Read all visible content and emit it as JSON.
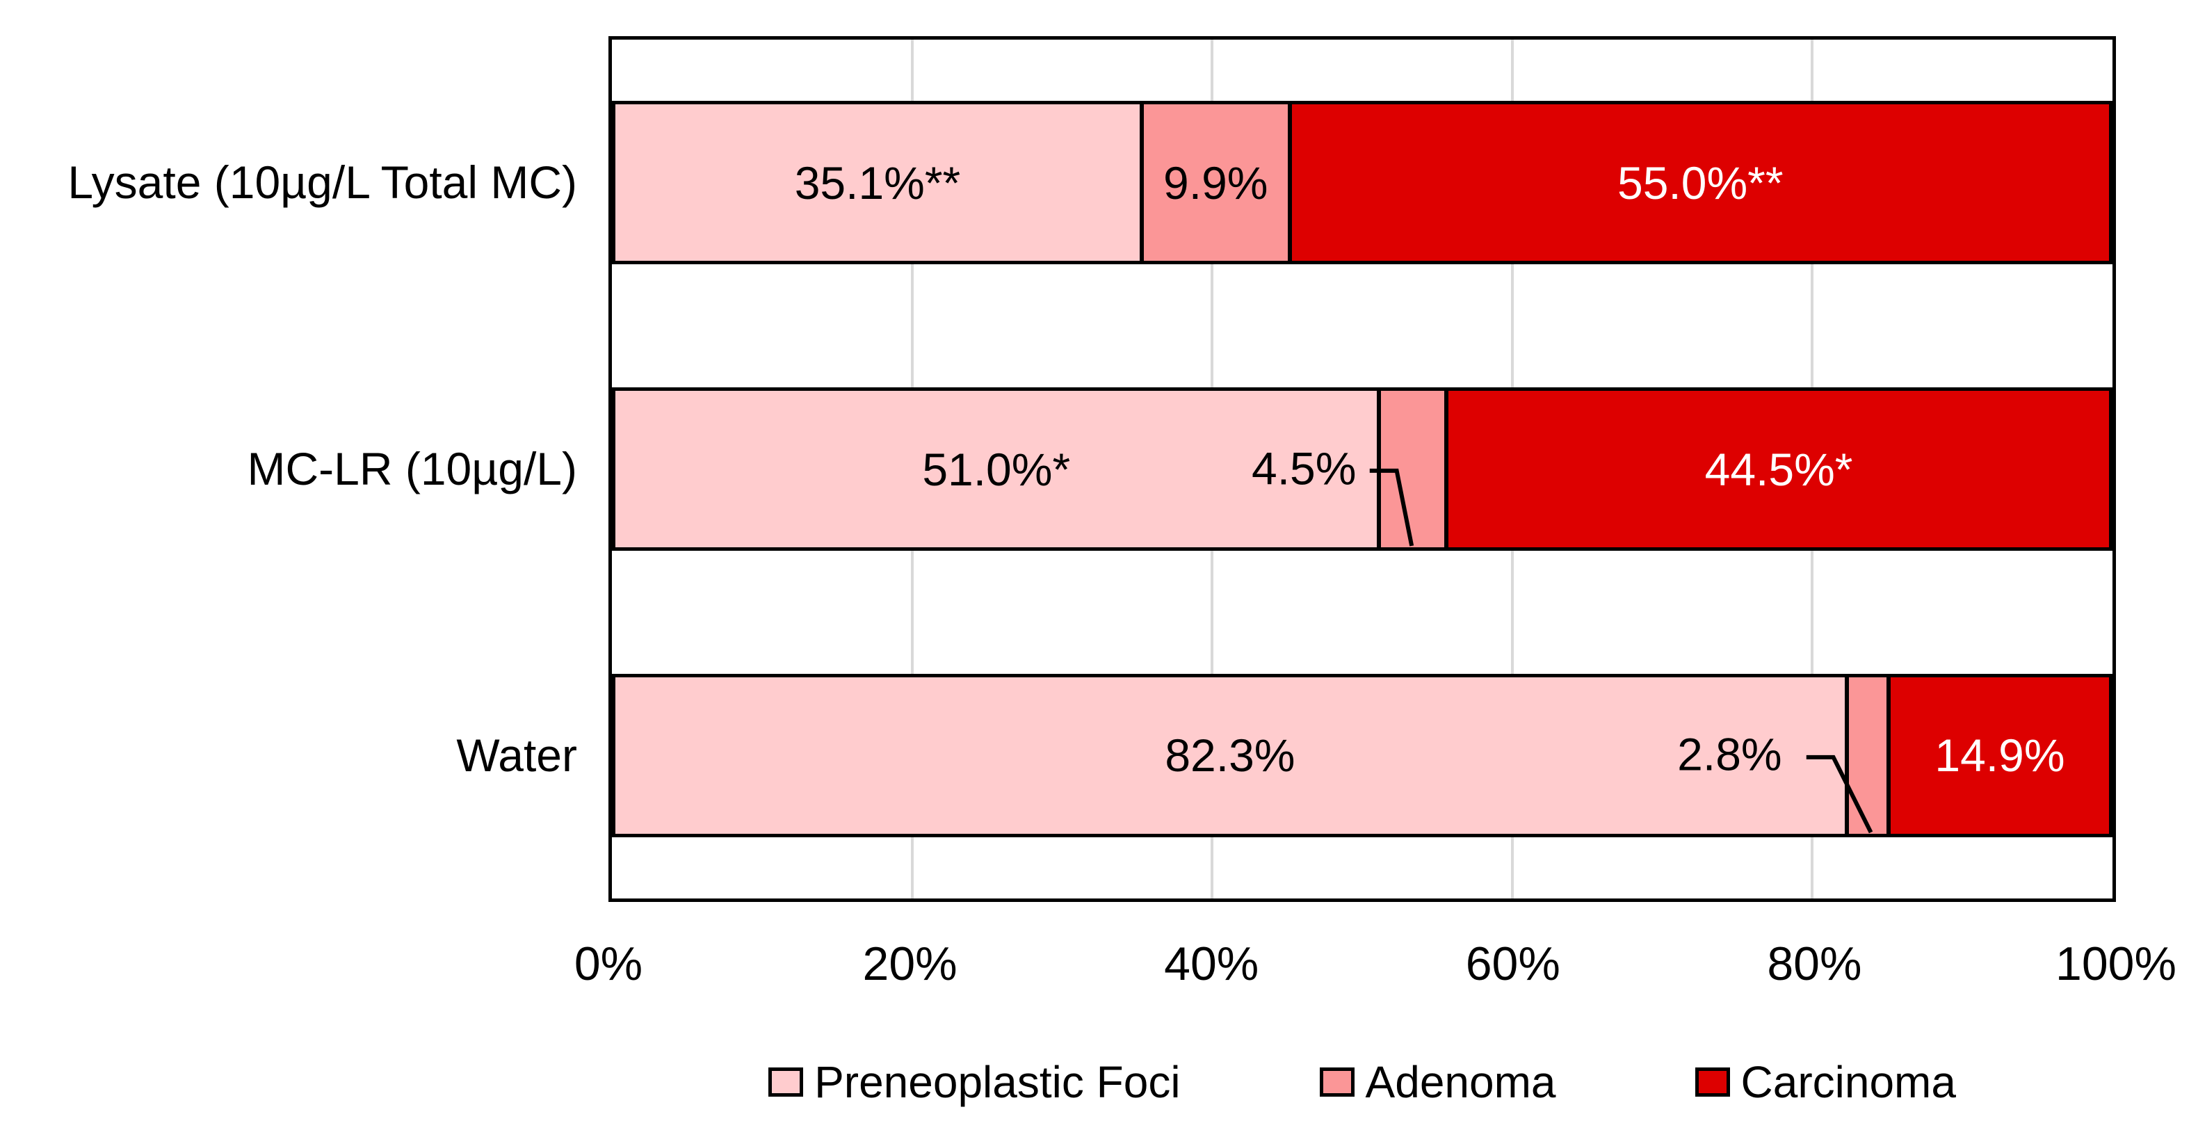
{
  "chart_data": {
    "type": "bar",
    "subtype": "horizontal-stacked-100pct",
    "title": "",
    "xlabel": "",
    "ylabel": "",
    "categories": [
      "Lysate (10µg/L Total MC)",
      "MC-LR (10µg/L)",
      "Water"
    ],
    "series": [
      {
        "name": "Preneoplastic Foci",
        "values": [
          35.1,
          51.0,
          82.3
        ],
        "labels": [
          "35.1%**",
          "51.0%*",
          "82.3%"
        ],
        "color": "#ffccce"
      },
      {
        "name": "Adenoma",
        "values": [
          9.9,
          4.5,
          2.8
        ],
        "labels": [
          "9.9%",
          "4.5%",
          "2.8%"
        ],
        "color": "#fb9697"
      },
      {
        "name": "Carcinoma",
        "values": [
          55.0,
          44.5,
          14.9
        ],
        "labels": [
          "55.0%**",
          "44.5%*",
          "14.9%"
        ],
        "color": "#dd0000"
      }
    ],
    "xlim": [
      0,
      100
    ],
    "x_tick_labels": [
      "0%",
      "20%",
      "40%",
      "60%",
      "80%",
      "100%"
    ],
    "grid": "vertical gridlines every 20%",
    "gridline_color": "#d9d9d9",
    "bar_border_color": "#000000",
    "label_color_on_carcinoma": "#ffffff",
    "legend_position": "bottom-center",
    "annotations": "asterisks on labels denote statistical significance; 4.5% and 2.8% adenoma labels use leader lines"
  },
  "rows": [
    {
      "category": "Lysate (10µg/L Total MC)",
      "segments": {
        "preneo": {
          "value": 35.1,
          "label": "35.1%**"
        },
        "adenoma": {
          "value": 9.9,
          "label": "9.9%"
        },
        "carcinoma": {
          "value": 55.0,
          "label": "55.0%**"
        }
      }
    },
    {
      "category": "MC-LR (10µg/L)",
      "segments": {
        "preneo": {
          "value": 51.0,
          "label": "51.0%*"
        },
        "adenoma": {
          "value": 4.5,
          "label": "4.5%"
        },
        "carcinoma": {
          "value": 44.5,
          "label": "44.5%*"
        }
      }
    },
    {
      "category": "Water",
      "segments": {
        "preneo": {
          "value": 82.3,
          "label": "82.3%"
        },
        "adenoma": {
          "value": 2.8,
          "label": "2.8%"
        },
        "carcinoma": {
          "value": 14.9,
          "label": "14.9%"
        }
      }
    }
  ],
  "axis": {
    "ticks": [
      {
        "label": "0%",
        "pos": 0
      },
      {
        "label": "20%",
        "pos": 20
      },
      {
        "label": "40%",
        "pos": 40
      },
      {
        "label": "60%",
        "pos": 60
      },
      {
        "label": "80%",
        "pos": 80
      },
      {
        "label": "100%",
        "pos": 100
      }
    ]
  },
  "legend": {
    "items": [
      {
        "label": "Preneoplastic Foci",
        "color": "#ffccce"
      },
      {
        "label": "Adenoma",
        "color": "#fb9697"
      },
      {
        "label": "Carcinoma",
        "color": "#dd0000"
      }
    ]
  }
}
